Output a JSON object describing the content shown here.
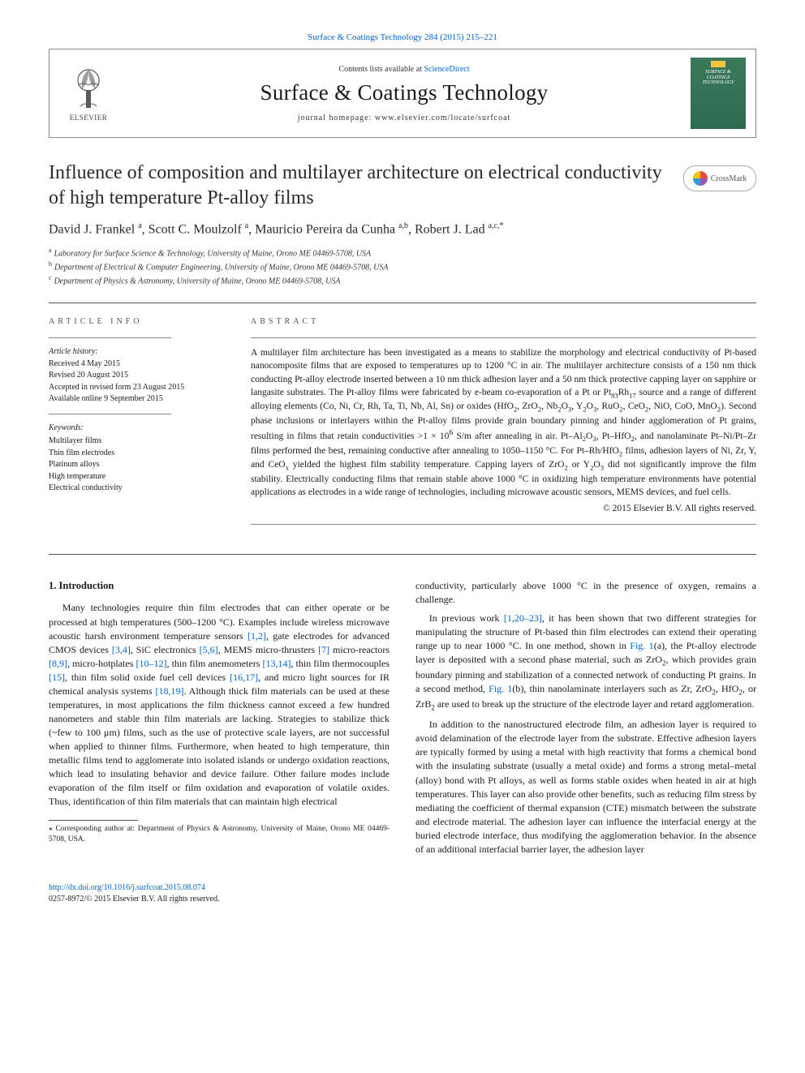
{
  "top_citation": "Surface & Coatings Technology 284 (2015) 215–221",
  "header": {
    "contents_prefix": "Contents lists available at ",
    "contents_link": "ScienceDirect",
    "journal_name": "Surface & Coatings Technology",
    "homepage_prefix": "journal homepage: ",
    "homepage_url": "www.elsevier.com/locate/surfcoat",
    "publisher": "ELSEVIER",
    "cover_text": "SURFACE & COATINGS TECHNOLOGY"
  },
  "crossmark_label": "CrossMark",
  "title": "Influence of composition and multilayer architecture on electrical conductivity of high temperature Pt-alloy films",
  "authors_html": "David J. Frankel <sup>a</sup>, Scott C. Moulzolf <sup>a</sup>, Mauricio Pereira da Cunha <sup>a,b</sup>, Robert J. Lad <sup>a,c,*</sup>",
  "affiliations": [
    {
      "sup": "a",
      "text": "Laboratory for Surface Science & Technology, University of Maine, Orono ME 04469-5708, USA"
    },
    {
      "sup": "b",
      "text": "Department of Electrical & Computer Engineering, University of Maine, Orono ME 04469-5708, USA"
    },
    {
      "sup": "c",
      "text": "Department of Physics & Astronomy, University of Maine, Orono ME 04469-5708, USA"
    }
  ],
  "info_heading": "article info",
  "abstract_heading": "abstract",
  "history": {
    "label": "Article history:",
    "received": "Received 4 May 2015",
    "revised": "Revised 20 August 2015",
    "accepted": "Accepted in revised form 23 August 2015",
    "online": "Available online 9 September 2015"
  },
  "keywords_label": "Keywords:",
  "keywords": [
    "Multilayer films",
    "Thin film electrodes",
    "Platinum alloys",
    "High temperature",
    "Electrical conductivity"
  ],
  "abstract_html": "A multilayer film architecture has been investigated as a means to stabilize the morphology and electrical conductivity of Pt-based nanocomposite films that are exposed to temperatures up to 1200 °C in air. The multilayer architecture consists of a 150 nm thick conducting Pt-alloy electrode inserted between a 10 nm thick adhesion layer and a 50 nm thick protective capping layer on sapphire or langasite substrates. The Pt-alloy films were fabricated by e-beam co-evaporation of a Pt or Pt<sub>83</sub>Rh<sub>17</sub> source and a range of different alloying elements (Co, Ni, Cr, Rh, Ta, Ti, Nb, Al, Sn) or oxides (HfO<sub>2</sub>, ZrO<sub>2</sub>, Nb<sub>2</sub>O<sub>3</sub>, Y<sub>2</sub>O<sub>3</sub>, RuO<sub>2</sub>, CeO<sub>2</sub>, NiO, CoO, MnO<sub>2</sub>). Second phase inclusions or interlayers within the Pt-alloy films provide grain boundary pinning and hinder agglomeration of Pt grains, resulting in films that retain conductivities &gt;1 × 10<sup>6</sup> S/m after annealing in air. Pt–Al<sub>2</sub>O<sub>3</sub>, Pt–HfO<sub>2</sub>, and nanolaminate Pt–Ni/Pt–Zr films performed the best, remaining conductive after annealing to 1050–1150 °C. For Pt–Rh/HfO<sub>2</sub> films, adhesion layers of Ni, Zr, Y, and CeO<sub>x</sub> yielded the highest film stability temperature. Capping layers of ZrO<sub>2</sub> or Y<sub>2</sub>O<sub>3</sub> did not significantly improve the film stability. Electrically conducting films that remain stable above 1000 °C in oxidizing high temperature environments have potential applications as electrodes in a wide range of technologies, including microwave acoustic sensors, MEMS devices, and fuel cells.",
  "copyright": "© 2015 Elsevier B.V. All rights reserved.",
  "intro_heading": "1. Introduction",
  "intro_p1_html": "Many technologies require thin film electrodes that can either operate or be processed at high temperatures (500–1200 °C). Examples include wireless microwave acoustic harsh environment temperature sensors <a href='#'>[1,2]</a>, gate electrodes for advanced CMOS devices <a href='#'>[3,4]</a>, SiC electronics <a href='#'>[5,6]</a>, MEMS micro-thrusters <a href='#'>[7]</a> micro-reactors <a href='#'>[8,9]</a>, micro-hotplates <a href='#'>[10–12]</a>, thin film anemometers <a href='#'>[13,14]</a>, thin film thermocouples <a href='#'>[15]</a>, thin film solid oxide fuel cell devices <a href='#'>[16,17]</a>, and micro light sources for IR chemical analysis systems <a href='#'>[18,19]</a>. Although thick film materials can be used at these temperatures, in most applications the film thickness cannot exceed a few hundred nanometers and stable thin film materials are lacking. Strategies to stabilize thick (~few to 100 μm) films, such as the use of protective scale layers, are not successful when applied to thinner films. Furthermore, when heated to high temperature, thin metallic films tend to agglomerate into isolated islands or undergo oxidation reactions, which lead to insulating behavior and device failure. Other failure modes include evaporation of the film itself or film oxidation and evaporation of volatile oxides. Thus, identification of thin film materials that can maintain high electrical",
  "corresponding_note": "⁎  Corresponding author at: Department of Physics & Astronomy, University of Maine, Orono ME 04469-5708, USA.",
  "intro_p1b": "conductivity, particularly above 1000 °C in the presence of oxygen, remains a challenge.",
  "intro_p2_html": "In previous work <a href='#'>[1,20–23]</a>, it has been shown that two different strategies for manipulating the structure of Pt-based thin film electrodes can extend their operating range up to near 1000 °C. In one method, shown in <a href='#'>Fig. 1</a>(a), the Pt-alloy electrode layer is deposited with a second phase material, such as ZrO<sub>2</sub>, which provides grain boundary pinning and stabilization of a connected network of conducting Pt grains. In a second method, <a href='#'>Fig. 1</a>(b), thin nanolaminate interlayers such as Zr, ZrO<sub>2</sub>, HfO<sub>2</sub>, or ZrB<sub>2</sub> are used to break up the structure of the electrode layer and retard agglomeration.",
  "intro_p3_html": "In addition to the nanostructured electrode film, an adhesion layer is required to avoid delamination of the electrode layer from the substrate. Effective adhesion layers are typically formed by using a metal with high reactivity that forms a chemical bond with the insulating substrate (usually a metal oxide) and forms a strong metal–metal (alloy) bond with Pt alloys, as well as forms stable oxides when heated in air at high temperatures. This layer can also provide other benefits, such as reducing film stress by mediating the coefficient of thermal expansion (CTE) mismatch between the substrate and electrode material. The adhesion layer can influence the interfacial energy at the buried electrode interface, thus modifying the agglomeration behavior. In the absence of an additional interfacial barrier layer, the adhesion layer",
  "footer": {
    "doi": "http://dx.doi.org/10.1016/j.surfcoat.2015.08.074",
    "issn_line": "0257-8972/© 2015 Elsevier B.V. All rights reserved."
  }
}
